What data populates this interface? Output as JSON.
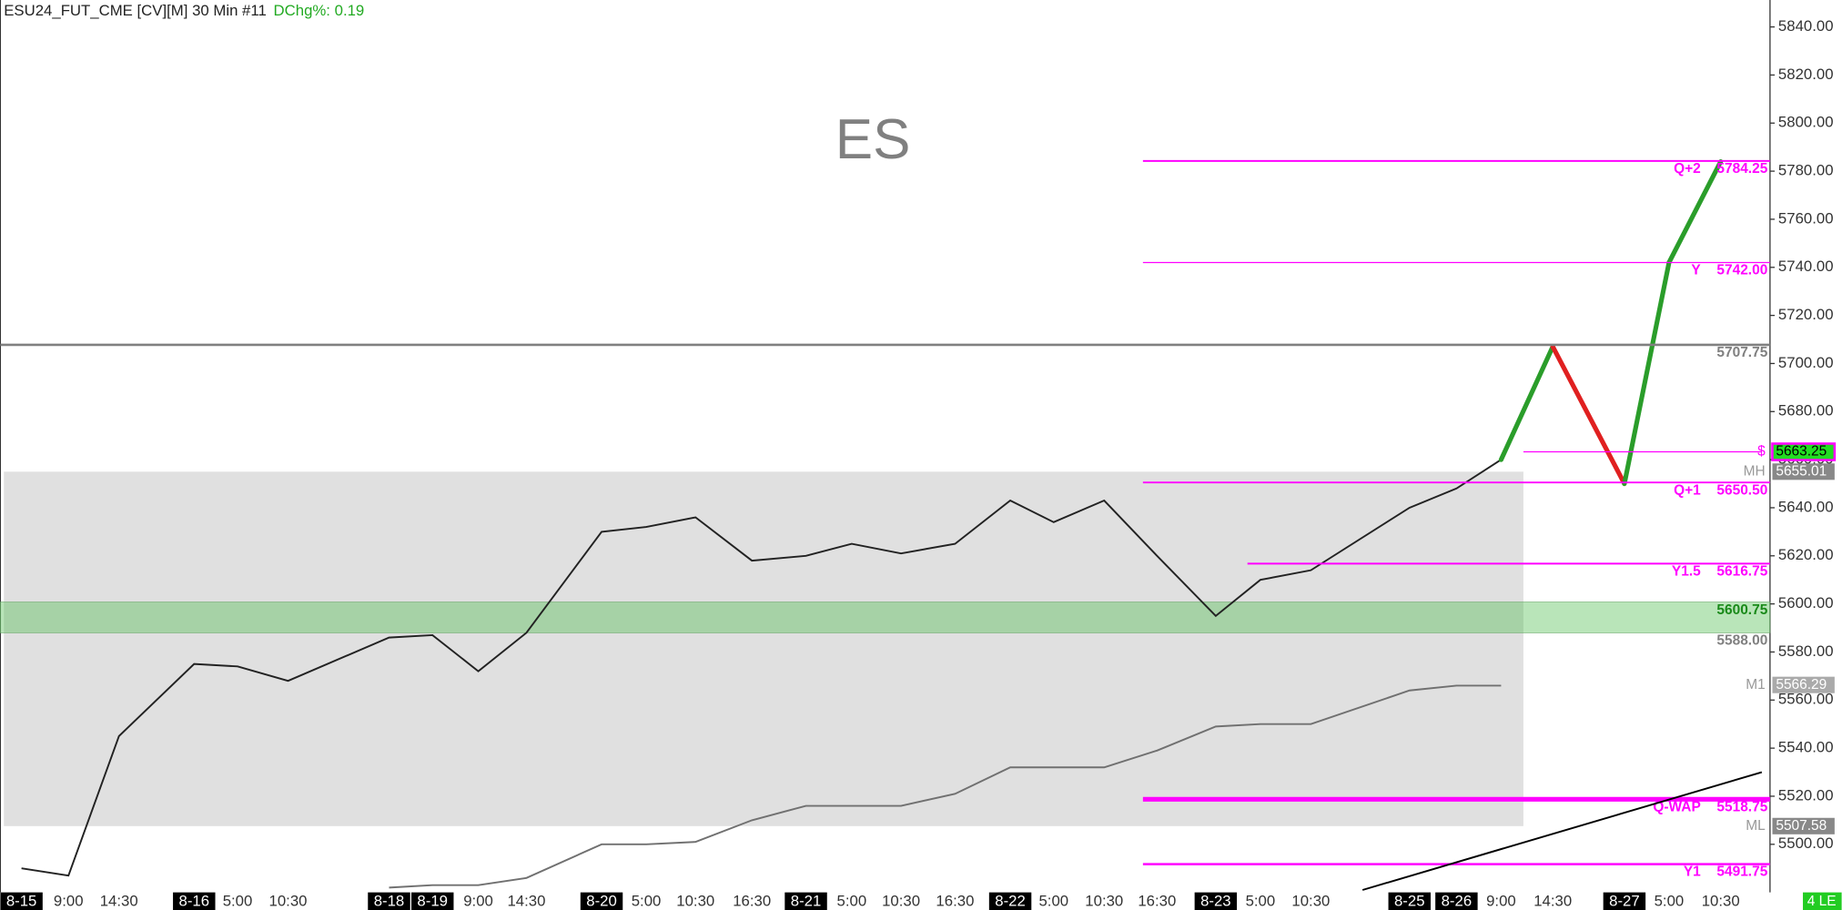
{
  "chart_data": {
    "type": "line",
    "title": "ESU24_FUT_CME [CV][M]  30 Min  #11",
    "subtitle": "DChg%: 0.19",
    "watermark": "ES",
    "status": "4 LE",
    "categories": [
      "8-15",
      "9:00",
      "14:30",
      "8-16",
      "5:00",
      "10:30",
      "8-18",
      "8-19",
      "9:00",
      "14:30",
      "8-20",
      "5:00",
      "10:30",
      "16:30",
      "8-21",
      "5:00",
      "10:30",
      "16:30",
      "8-22",
      "5:00",
      "10:30",
      "16:30",
      "8-23",
      "5:00",
      "10:30",
      "8-25",
      "8-26",
      "9:00",
      "14:30",
      "8-27",
      "5:00",
      "10:30"
    ],
    "series": [
      {
        "color": "#222222",
        "values": [
          5490,
          5487,
          5545,
          5575,
          5574,
          5568,
          5586,
          5587,
          5572,
          5588,
          5630,
          5632,
          5636,
          5618,
          5620,
          5625,
          5621,
          5625,
          5643,
          5634,
          5643,
          5620,
          5595,
          5610,
          5614,
          5640,
          5648,
          5660,
          null,
          null,
          null,
          null
        ]
      },
      {
        "color": "#707070",
        "values": [
          null,
          null,
          null,
          null,
          null,
          null,
          5482,
          5483,
          5483,
          5486,
          5500,
          5500,
          5501,
          5510,
          5516,
          5516,
          5516,
          5521,
          5532,
          5532,
          5532,
          5539,
          5549,
          5550,
          5550,
          5564,
          5566,
          5566,
          null,
          null,
          null,
          null
        ]
      },
      {
        "color": "#2a9d2a",
        "down_color": "#e02020",
        "values": [
          null,
          null,
          null,
          null,
          null,
          null,
          null,
          null,
          null,
          null,
          null,
          null,
          null,
          null,
          null,
          null,
          null,
          null,
          null,
          null,
          null,
          null,
          null,
          null,
          null,
          null,
          null,
          5660,
          5707,
          5650,
          5742,
          5784
        ]
      }
    ],
    "levels": [
      {
        "name": "Q+2",
        "value": 5784.25,
        "color": "#ff00ff"
      },
      {
        "name": "Y",
        "value": 5742,
        "value_label": "5742.00",
        "color": "#ff00ff"
      },
      {
        "value": 5707.75,
        "color": "#808080"
      },
      {
        "name": "$",
        "value": 5663.25,
        "color": "#ff00ff",
        "box": "#22dd22"
      },
      {
        "name": "MH",
        "value": 5655.01,
        "color": "#ffffff",
        "box": "#888888"
      },
      {
        "name": "Q+1",
        "value": 5650.5,
        "value_label": "5650.50",
        "color": "#ff00ff"
      },
      {
        "name": "Y1.5",
        "value": 5616.75,
        "color": "#ff00ff"
      },
      {
        "value": 5600.75,
        "color": "#1a8a1a"
      },
      {
        "value": 5588,
        "value_label": "5588.00",
        "color": "#808080"
      },
      {
        "name": "M1",
        "value": 5566.29,
        "color": "#999999",
        "box": "#aaaaaa"
      },
      {
        "name": "Q-WAP",
        "value": 5518.75,
        "color": "#ff00ff"
      },
      {
        "name": "ML",
        "value": 5507.58,
        "color": "#ffffff",
        "box": "#888888"
      },
      {
        "name": "Y1",
        "value": 5491.75,
        "color": "#ff00ff"
      }
    ],
    "trendline": [
      5481,
      5530
    ],
    "ylim": [
      5480,
      5851.2
    ],
    "yticks": [
      {
        "value": 5500,
        "label": "5500.00"
      },
      {
        "value": 5520,
        "label": "5520.00"
      },
      {
        "value": 5540,
        "label": "5540.00"
      },
      {
        "value": 5560,
        "label": "5560.00"
      },
      {
        "value": 5580,
        "label": "5580.00"
      },
      {
        "value": 5600,
        "label": "5600.00"
      },
      {
        "value": 5620,
        "label": "5620.00"
      },
      {
        "value": 5640,
        "label": "5640.00"
      },
      {
        "value": 5660,
        "label": "5660.00"
      },
      {
        "value": 5680,
        "label": "5680.00"
      },
      {
        "value": 5700,
        "label": "5700.00"
      },
      {
        "value": 5720,
        "label": "5720.00"
      },
      {
        "value": 5740,
        "label": "5740.00"
      },
      {
        "value": 5760,
        "label": "5760.00"
      },
      {
        "value": 5780,
        "label": "5780.00"
      },
      {
        "value": 5800,
        "label": "5800.00"
      },
      {
        "value": 5820,
        "label": "5820.00"
      },
      {
        "value": 5840,
        "label": "5840.00"
      }
    ]
  }
}
